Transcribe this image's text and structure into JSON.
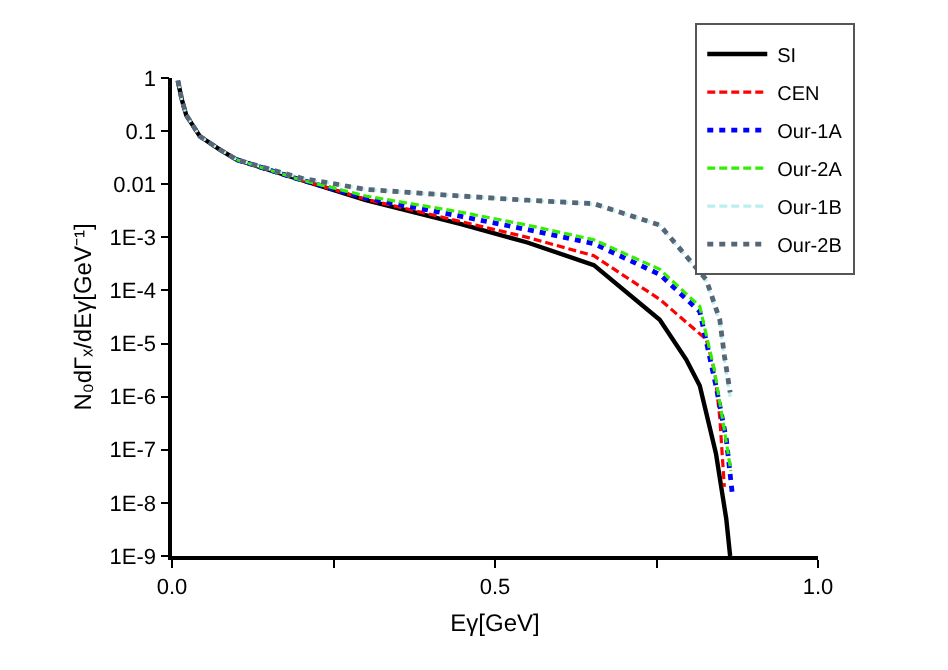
{
  "chart_data": {
    "type": "line",
    "xlabel": "Eγ[GeV]",
    "ylabel": "N₀dΓₓ/dEγ[GeV⁻¹]",
    "log": "y",
    "xlim": [
      0,
      1
    ],
    "xticks": [
      {
        "value": 0,
        "label": "0.0"
      },
      {
        "value": 0.25,
        "label": null
      },
      {
        "value": 0.5,
        "label": "0.5"
      },
      {
        "value": 0.75,
        "label": null
      },
      {
        "value": 1,
        "label": "1.0"
      }
    ],
    "ylim": [
      1e-09,
      1
    ],
    "yticks": [
      1,
      0.1,
      0.01,
      {
        "value": 0.001,
        "label": "1E-3"
      },
      {
        "value": 0.0001,
        "label": "1E-4"
      },
      {
        "value": 1e-05,
        "label": "1E-5"
      },
      {
        "value": 1e-06,
        "label": "1E-6"
      },
      {
        "value": 1e-07,
        "label": "1E-7"
      },
      {
        "value": 1e-08,
        "label": "1E-8"
      },
      {
        "value": 1e-09,
        "label": "1E-9"
      }
    ],
    "grid": false,
    "legend": "top right",
    "marker": "none",
    "series": [
      {
        "name": "SI",
        "color": "#000000",
        "line_style": "solid",
        "x": [
          0.009,
          0.015,
          0.022,
          0.043,
          0.074,
          0.1,
          0.2,
          0.3,
          0.446,
          0.55,
          0.653,
          0.755,
          0.796,
          0.817,
          0.842,
          0.858,
          0.864
        ],
        "values": [
          0.9,
          0.4,
          0.2,
          0.08,
          0.045,
          0.029,
          0.012,
          0.005,
          0.0018,
          0.0008,
          0.0003,
          2.8e-05,
          5e-06,
          1.6e-06,
          8.5e-08,
          5e-09,
          1e-09
        ]
      },
      {
        "name": "CEN",
        "color": "#ff0000",
        "line_style": "dashed",
        "x": [
          0.2,
          0.3,
          0.446,
          0.55,
          0.653,
          0.755,
          0.827,
          0.84,
          0.848,
          0.855
        ],
        "values": [
          0.012,
          0.0052,
          0.002,
          0.001,
          0.00045,
          6.8e-05,
          1.2e-05,
          3e-06,
          4e-07,
          2e-08
        ]
      },
      {
        "name": "Our-1A",
        "color": "#0000ff",
        "line_style": "dotted",
        "x": [
          0.1,
          0.2,
          0.3,
          0.446,
          0.55,
          0.653,
          0.755,
          0.817,
          0.842,
          0.858,
          0.867
        ],
        "values": [
          0.029,
          0.012,
          0.0055,
          0.0025,
          0.0014,
          0.00076,
          0.0002,
          4e-05,
          1.6e-06,
          1.6e-07,
          1.6e-08
        ]
      },
      {
        "name": "Our-2A",
        "color": "#33ee00",
        "line_style": "dashed",
        "x": [
          0.1,
          0.2,
          0.3,
          0.446,
          0.55,
          0.653,
          0.755,
          0.817,
          0.84,
          0.86,
          0.865
        ],
        "values": [
          0.029,
          0.012,
          0.006,
          0.003,
          0.0017,
          0.0009,
          0.00025,
          5e-05,
          3e-06,
          1e-07,
          4e-08
        ]
      },
      {
        "name": "Our-1B",
        "color": "#bbeeee",
        "line_style": "dashed",
        "x": [
          0.009,
          0.015,
          0.022,
          0.043,
          0.074,
          0.1,
          0.2,
          0.3,
          0.446,
          0.55,
          0.653,
          0.755,
          0.827,
          0.848,
          0.855,
          0.864
        ],
        "values": [
          0.9,
          0.4,
          0.2,
          0.08,
          0.045,
          0.029,
          0.013,
          0.008,
          0.006,
          0.005,
          0.0042,
          0.0017,
          0.00015,
          2.5e-05,
          5e-06,
          1e-06
        ]
      },
      {
        "name": "Our-2B",
        "color": "#556677",
        "line_style": "dotted",
        "x": [
          0.009,
          0.015,
          0.022,
          0.043,
          0.074,
          0.1,
          0.2,
          0.3,
          0.446,
          0.55,
          0.653,
          0.755,
          0.827,
          0.848,
          0.855,
          0.864
        ],
        "values": [
          0.9,
          0.4,
          0.2,
          0.08,
          0.045,
          0.029,
          0.013,
          0.008,
          0.006,
          0.005,
          0.0043,
          0.0017,
          0.00016,
          2.8e-05,
          6e-06,
          1.2e-06
        ]
      }
    ]
  }
}
